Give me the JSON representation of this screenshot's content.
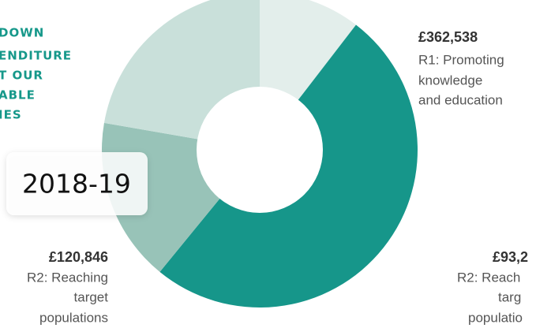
{
  "chart_data": {
    "type": "pie",
    "title_lines": [
      "DOWN",
      "ENDITURE",
      "T OUR",
      "ABLE",
      "IES"
    ],
    "period": "2018-19",
    "values": [
      75000,
      362538,
      120846,
      160000
    ],
    "colors": [
      "#e3eeeb",
      "#16968a",
      "#98c3b8",
      "#c9e0da"
    ],
    "annotations": [
      [
        "£362,538",
        "R1: Promoting",
        "knowledge",
        "and education"
      ],
      [
        "£120,846",
        "R2: Reaching",
        "target",
        "populations"
      ],
      [
        "£93,2",
        "R2: Reach",
        "targ",
        "populatio"
      ]
    ]
  }
}
